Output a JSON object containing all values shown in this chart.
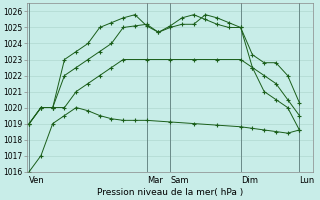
{
  "xlabel": "Pression niveau de la mer( hPa )",
  "bg_color": "#c8ede8",
  "grid_color": "#b0d8d0",
  "line_color": "#1a5e1a",
  "vline_color": "#6a8a88",
  "ylim": [
    1016,
    1026.5
  ],
  "yticks": [
    1016,
    1017,
    1018,
    1019,
    1020,
    1021,
    1022,
    1023,
    1024,
    1025,
    1026
  ],
  "x_day_labels": [
    "Ven",
    "Mar",
    "Sam",
    "Dim",
    "Lun"
  ],
  "x_day_positions": [
    0,
    10,
    12,
    18,
    23
  ],
  "xlim": [
    -0.2,
    24.2
  ],
  "series": [
    {
      "x": [
        0,
        1,
        2,
        3,
        4,
        5,
        6,
        7,
        8,
        9,
        10,
        12,
        14,
        16,
        18,
        19,
        20,
        21,
        22,
        23
      ],
      "y": [
        1016,
        1017,
        1019,
        1019.5,
        1020,
        1019.8,
        1019.5,
        1019.3,
        1019.2,
        1019.2,
        1019.2,
        1019.1,
        1019.0,
        1018.9,
        1018.8,
        1018.7,
        1018.6,
        1018.5,
        1018.4,
        1018.6
      ]
    },
    {
      "x": [
        0,
        1,
        2,
        3,
        4,
        5,
        6,
        7,
        8,
        10,
        12,
        14,
        16,
        18,
        19,
        20,
        21,
        22,
        23
      ],
      "y": [
        1019,
        1020,
        1020,
        1020,
        1021,
        1021.5,
        1022,
        1022.5,
        1023,
        1023,
        1023,
        1023,
        1023,
        1023,
        1022.5,
        1022,
        1021.5,
        1020.5,
        1019.5
      ]
    },
    {
      "x": [
        0,
        1,
        2,
        3,
        4,
        5,
        6,
        7,
        8,
        9,
        10,
        11,
        12,
        13,
        14,
        15,
        16,
        17,
        18,
        19,
        20,
        21,
        22,
        23
      ],
      "y": [
        1019,
        1020,
        1020,
        1022,
        1022.5,
        1023,
        1023.5,
        1024,
        1025,
        1025.1,
        1025.2,
        1024.7,
        1025.1,
        1025.6,
        1025.8,
        1025.5,
        1025.2,
        1025.0,
        1025.0,
        1023.3,
        1022.8,
        1022.8,
        1022,
        1020.3
      ]
    },
    {
      "x": [
        0,
        1,
        2,
        3,
        4,
        5,
        6,
        7,
        8,
        9,
        10,
        11,
        12,
        13,
        14,
        15,
        16,
        17,
        18,
        19,
        20,
        21,
        22,
        23
      ],
      "y": [
        1019,
        1020,
        1020,
        1023,
        1023.5,
        1024,
        1025,
        1025.3,
        1025.6,
        1025.8,
        1025.1,
        1024.7,
        1025.0,
        1025.2,
        1025.2,
        1025.8,
        1025.6,
        1025.3,
        1025.0,
        1022.5,
        1021,
        1020.5,
        1020,
        1018.6
      ]
    }
  ],
  "figsize": [
    3.2,
    2.0
  ],
  "dpi": 100
}
